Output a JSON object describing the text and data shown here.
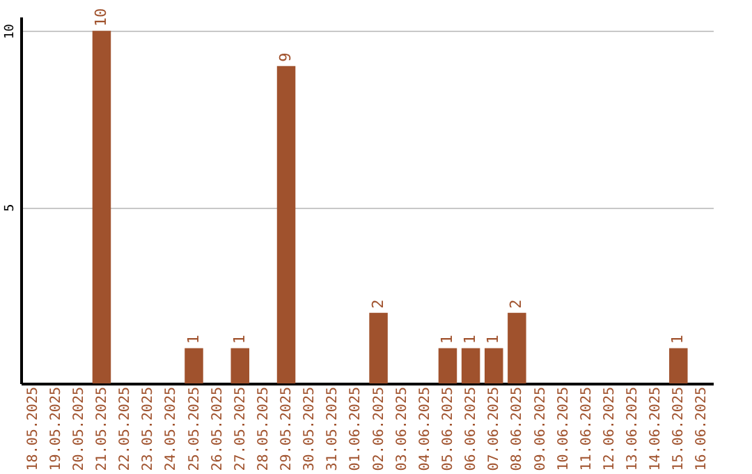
{
  "chart_data": {
    "type": "bar",
    "categories": [
      "18.05.2025",
      "19.05.2025",
      "20.05.2025",
      "21.05.2025",
      "22.05.2025",
      "23.05.2025",
      "24.05.2025",
      "25.05.2025",
      "26.05.2025",
      "27.05.2025",
      "28.05.2025",
      "29.05.2025",
      "30.05.2025",
      "31.05.2025",
      "01.06.2025",
      "02.06.2025",
      "03.06.2025",
      "04.06.2025",
      "05.06.2025",
      "06.06.2025",
      "07.06.2025",
      "08.06.2025",
      "09.06.2025",
      "10.06.2025",
      "11.06.2025",
      "12.06.2025",
      "13.06.2025",
      "14.06.2025",
      "15.06.2025",
      "16.06.2025"
    ],
    "values": [
      0,
      0,
      0,
      10,
      0,
      0,
      0,
      1,
      0,
      1,
      0,
      9,
      0,
      0,
      0,
      2,
      0,
      0,
      1,
      1,
      1,
      2,
      0,
      0,
      0,
      0,
      0,
      0,
      1,
      0
    ],
    "value_labels": [
      null,
      null,
      null,
      "10",
      null,
      null,
      null,
      "1",
      null,
      "1",
      null,
      "9",
      null,
      null,
      null,
      "2",
      null,
      null,
      "1",
      "1",
      "1",
      "2",
      null,
      null,
      null,
      null,
      null,
      null,
      "1",
      null
    ],
    "color": "#a0522d",
    "ylim": [
      0,
      10.4
    ],
    "yticks": [
      5,
      10
    ],
    "grid": "y"
  }
}
